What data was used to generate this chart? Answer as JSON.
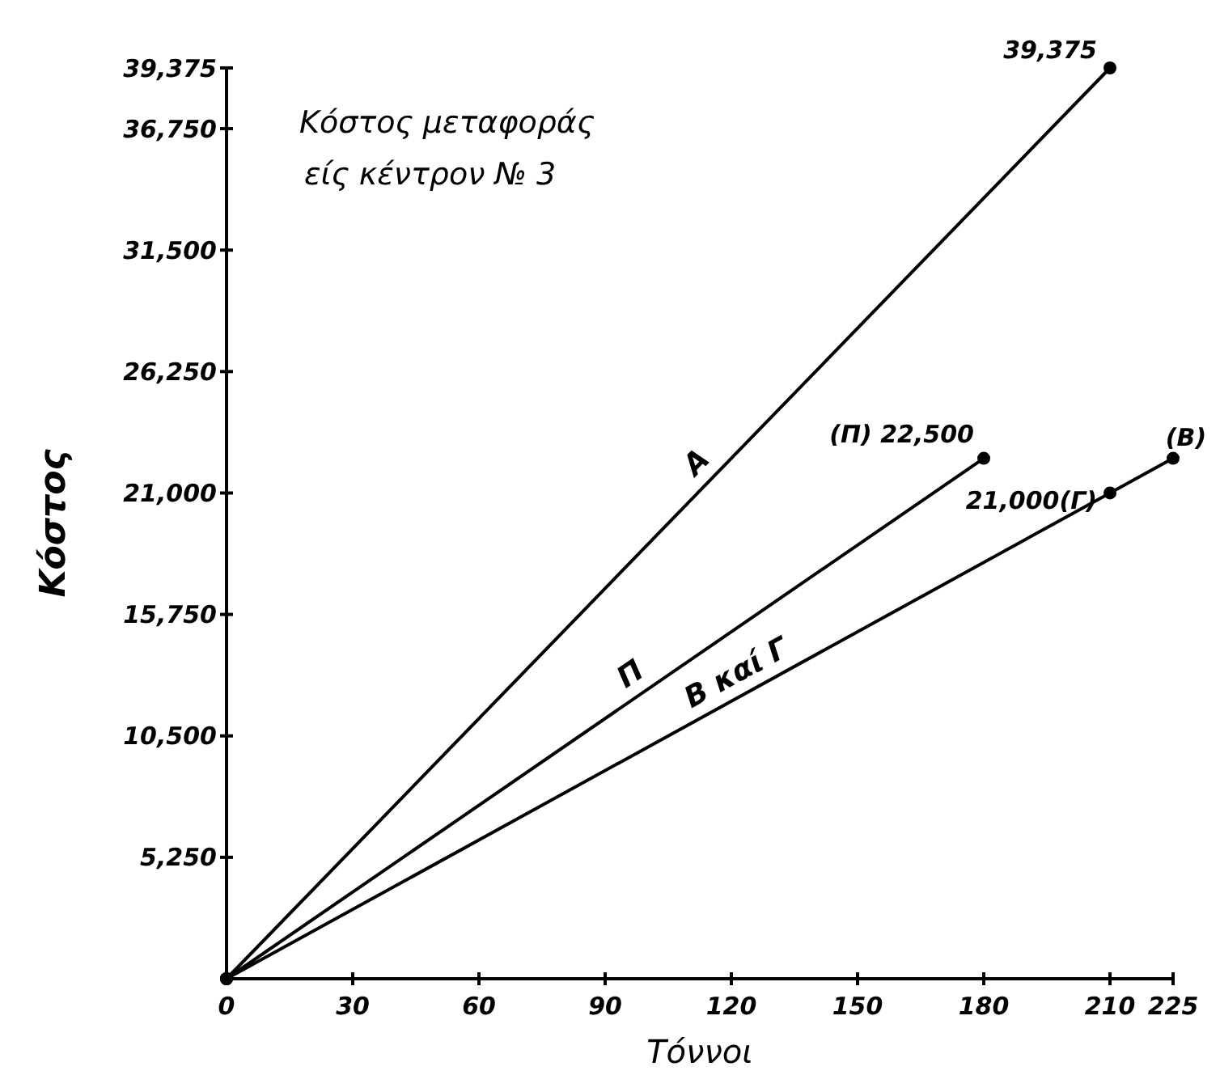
{
  "chart_data": {
    "type": "line",
    "title": "Κόστος μεταφοράς",
    "subtitle": "είς κέντρον № 3",
    "xlabel": "Τόννοι",
    "ylabel": "Κόστος",
    "xlim": [
      0,
      225
    ],
    "xticks": [
      0,
      30,
      60,
      90,
      120,
      150,
      180,
      210,
      225
    ],
    "ylim": [
      0,
      39375
    ],
    "yticks": [
      {
        "value": 0,
        "label": null
      },
      {
        "value": 5250,
        "label": "5,250"
      },
      {
        "value": 10500,
        "label": "10,500"
      },
      {
        "value": 15750,
        "label": "15,750"
      },
      {
        "value": 21000,
        "label": "21,000"
      },
      {
        "value": 26250,
        "label": "26,250"
      },
      {
        "value": 31500,
        "label": "31,500"
      },
      {
        "value": 36750,
        "label": "36,750"
      },
      {
        "value": 39375,
        "label": "39,375"
      }
    ],
    "series": [
      {
        "name": "A",
        "color": "#000000",
        "x": [
          0,
          210
        ],
        "values": [
          0,
          39375
        ],
        "value_labels": [
          null,
          "39,375"
        ]
      },
      {
        "name": "Π",
        "color": "#000000",
        "x": [
          0,
          180
        ],
        "values": [
          0,
          22500
        ],
        "value_labels": [
          null,
          "(Π) 22,500"
        ]
      },
      {
        "name": "Β καί Γ",
        "color": "#000000",
        "x": [
          0,
          210,
          225
        ],
        "values": [
          0,
          21000,
          22500
        ],
        "value_labels": [
          null,
          "21,000(Γ)",
          "(Β)"
        ]
      }
    ],
    "marker": "circle",
    "line_style": "solid",
    "grid": false
  }
}
